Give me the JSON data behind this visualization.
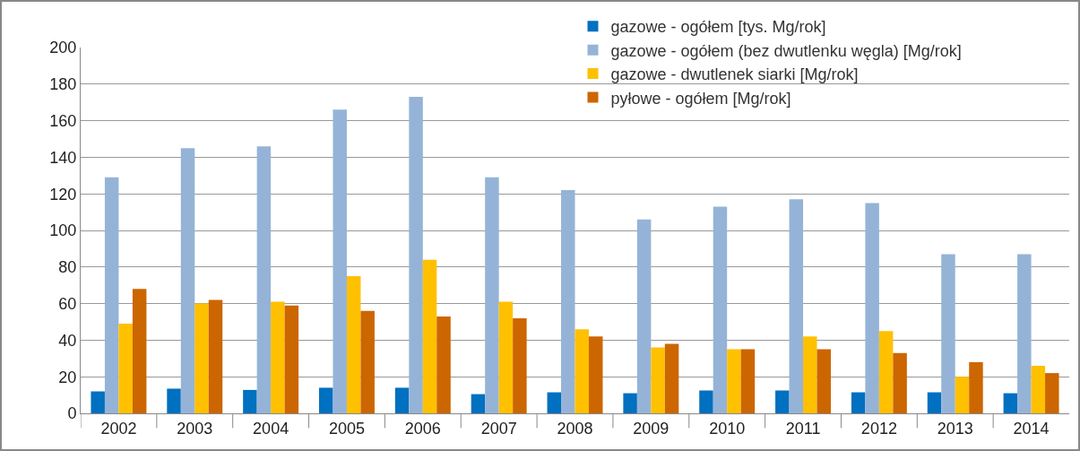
{
  "chart_data": {
    "type": "bar",
    "categories": [
      "2002",
      "2003",
      "2004",
      "2005",
      "2006",
      "2007",
      "2008",
      "2009",
      "2010",
      "2011",
      "2012",
      "2013",
      "2014"
    ],
    "series": [
      {
        "name": "gazowe - ogółem [tys. Mg/rok]",
        "color": "#0070c0",
        "values": [
          12,
          13.5,
          12.8,
          14,
          14,
          10.5,
          11.5,
          11,
          12.5,
          12.5,
          11.5,
          11.5,
          11
        ]
      },
      {
        "name": "gazowe - ogółem (bez dwutlenku węgla) [Mg/rok]",
        "color": "#95b3d7",
        "values": [
          129,
          145,
          146,
          166,
          173,
          129,
          122,
          106,
          113,
          117,
          115,
          87,
          87
        ]
      },
      {
        "name": "gazowe - dwutlenek siarki [Mg/rok]",
        "color": "#ffc000",
        "values": [
          49,
          60,
          61,
          75,
          84,
          61,
          46,
          36,
          35,
          42,
          45,
          20,
          26
        ]
      },
      {
        "name": "pyłowe - ogółem [Mg/rok]",
        "color": "#cc6600",
        "values": [
          68,
          62,
          59,
          56,
          53,
          52,
          42,
          38,
          35,
          35,
          33,
          28,
          22
        ]
      }
    ],
    "ylim": [
      0,
      200
    ],
    "yticks": [
      0,
      20,
      40,
      60,
      80,
      100,
      120,
      140,
      160,
      180,
      200
    ],
    "grid": "y",
    "legend": "top right"
  }
}
